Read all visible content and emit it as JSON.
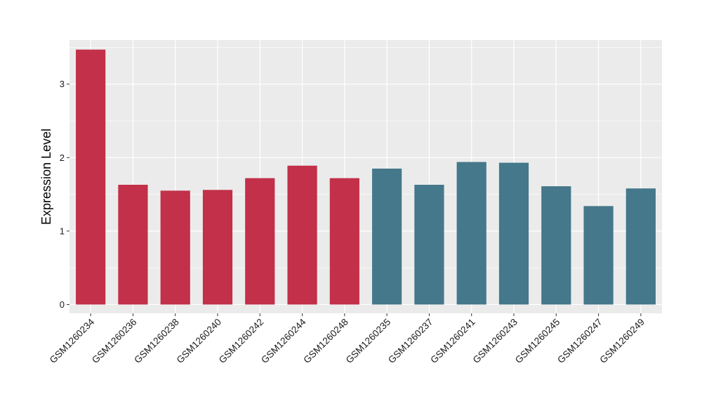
{
  "chart_data": {
    "type": "bar",
    "title": "",
    "xlabel": "",
    "ylabel": "Expression Level",
    "ylim": [
      -0.12,
      3.6
    ],
    "y_ticks": [
      0,
      1,
      2,
      3
    ],
    "grid": true,
    "legend": "none",
    "categories": [
      "GSM1260234",
      "GSM1260236",
      "GSM1260238",
      "GSM1260240",
      "GSM1260242",
      "GSM1260244",
      "GSM1260248",
      "GSM1260235",
      "GSM1260237",
      "GSM1260241",
      "GSM1260243",
      "GSM1260245",
      "GSM1260247",
      "GSM1260249"
    ],
    "values": [
      3.47,
      1.63,
      1.55,
      1.56,
      1.72,
      1.89,
      1.72,
      1.85,
      1.63,
      1.94,
      1.93,
      1.61,
      1.34,
      1.58
    ],
    "groups": [
      "a",
      "a",
      "a",
      "a",
      "a",
      "a",
      "a",
      "b",
      "b",
      "b",
      "b",
      "b",
      "b",
      "b"
    ],
    "group_colors": {
      "a": "#C23049",
      "b": "#44788A"
    },
    "panel_background": "#EBEBEB",
    "gridline_color": "#FFFFFF",
    "axis_text_color": "#1A1A1A",
    "tick_color": "#333333"
  }
}
